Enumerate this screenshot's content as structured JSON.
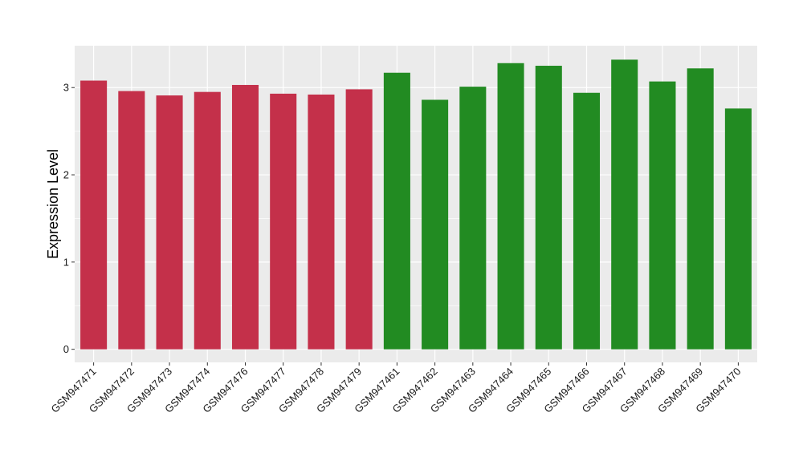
{
  "chart_data": {
    "type": "bar",
    "title": "",
    "xlabel": "",
    "ylabel": "Expression Level",
    "ylim": [
      -0.15,
      3.48
    ],
    "yticks": [
      0,
      1,
      2,
      3
    ],
    "grid": true,
    "background": "#ebebeb",
    "gridColor": "#ffffff",
    "categories": [
      "GSM947471",
      "GSM947472",
      "GSM947473",
      "GSM947474",
      "GSM947476",
      "GSM947477",
      "GSM947478",
      "GSM947479",
      "GSM947461",
      "GSM947462",
      "GSM947463",
      "GSM947464",
      "GSM947465",
      "GSM947466",
      "GSM947467",
      "GSM947468",
      "GSM947469",
      "GSM947470"
    ],
    "values": [
      3.08,
      2.96,
      2.91,
      2.95,
      3.03,
      2.93,
      2.92,
      2.98,
      3.17,
      2.86,
      3.01,
      3.28,
      3.25,
      2.94,
      3.32,
      3.07,
      3.22,
      2.76
    ],
    "colors": [
      "#c4304a",
      "#c4304a",
      "#c4304a",
      "#c4304a",
      "#c4304a",
      "#c4304a",
      "#c4304a",
      "#c4304a",
      "#228b22",
      "#228b22",
      "#228b22",
      "#228b22",
      "#228b22",
      "#228b22",
      "#228b22",
      "#228b22",
      "#228b22",
      "#228b22"
    ]
  }
}
